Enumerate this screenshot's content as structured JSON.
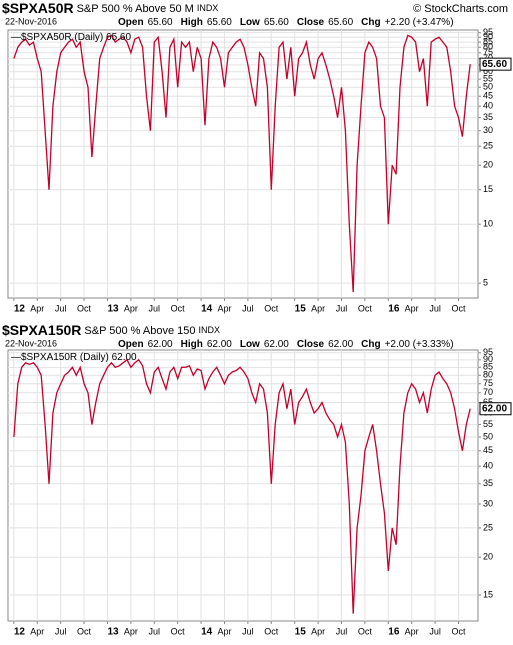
{
  "chart_data": [
    {
      "type": "line",
      "title": "$SPXA50R",
      "subtitle": "S&P 500 % Above 50 M",
      "exchange": "INDX",
      "date": "22-Nov-2016",
      "ohlc": [
        {
          "label": "Open",
          "value": "65.60"
        },
        {
          "label": "High",
          "value": "65.60"
        },
        {
          "label": "Low",
          "value": "65.60"
        },
        {
          "label": "Close",
          "value": "65.60"
        },
        {
          "label": "Chg",
          "value": "+2.20 (+3.47%)"
        }
      ],
      "watermark": "© StockCharts.com",
      "legend": "$SPXA50R (Daily) 65.60",
      "last_label": "65.60",
      "color": "#c4002b",
      "log_scale": true,
      "grid": true,
      "xlim": [
        -1.5,
        119
      ],
      "ylim": [
        4.2,
        98
      ],
      "xticks": [
        {
          "value": 0,
          "label": "12"
        },
        {
          "value": 6,
          "label": "Apr"
        },
        {
          "value": 12,
          "label": "Jul"
        },
        {
          "value": 18,
          "label": "Oct"
        },
        {
          "value": 24,
          "label": "13"
        },
        {
          "value": 30,
          "label": "Apr"
        },
        {
          "value": 36,
          "label": "Jul"
        },
        {
          "value": 42,
          "label": "Oct"
        },
        {
          "value": 48,
          "label": "14"
        },
        {
          "value": 54,
          "label": "Apr"
        },
        {
          "value": 60,
          "label": "Jul"
        },
        {
          "value": 66,
          "label": "Oct"
        },
        {
          "value": 72,
          "label": "15"
        },
        {
          "value": 78,
          "label": "Apr"
        },
        {
          "value": 84,
          "label": "Jul"
        },
        {
          "value": 90,
          "label": "Oct"
        },
        {
          "value": 96,
          "label": "16"
        },
        {
          "value": 102,
          "label": "Apr"
        },
        {
          "value": 108,
          "label": "Jul"
        },
        {
          "value": 114,
          "label": "Oct"
        }
      ],
      "yticks": [
        5,
        10,
        15,
        20,
        25,
        30,
        35,
        40,
        45,
        50,
        55,
        60,
        65,
        70,
        75,
        80,
        85,
        90,
        95
      ],
      "values": [
        70,
        80,
        85,
        88,
        82,
        85,
        70,
        60,
        30,
        15,
        40,
        60,
        75,
        80,
        85,
        88,
        80,
        85,
        60,
        50,
        22,
        40,
        70,
        80,
        90,
        92,
        85,
        88,
        90,
        85,
        75,
        88,
        90,
        80,
        45,
        30,
        85,
        90,
        60,
        35,
        80,
        88,
        50,
        85,
        80,
        85,
        60,
        80,
        70,
        32,
        70,
        85,
        80,
        70,
        50,
        75,
        80,
        85,
        88,
        80,
        65,
        50,
        40,
        75,
        70,
        50,
        15,
        40,
        80,
        85,
        55,
        80,
        45,
        70,
        75,
        85,
        65,
        55,
        70,
        75,
        65,
        55,
        45,
        35,
        50,
        30,
        10,
        4.5,
        20,
        40,
        75,
        85,
        80,
        70,
        40,
        35,
        10,
        20,
        18,
        50,
        80,
        92,
        90,
        85,
        60,
        70,
        40,
        85,
        88,
        90,
        85,
        80,
        60,
        40,
        35,
        28,
        45,
        65.6
      ]
    },
    {
      "type": "line",
      "title": "$SPXA150R",
      "subtitle": "S&P 500 % Above 150",
      "exchange": "INDX",
      "date": "22-Nov-2016",
      "ohlc": [
        {
          "label": "Open",
          "value": "62.00"
        },
        {
          "label": "High",
          "value": "62.00"
        },
        {
          "label": "Low",
          "value": "62.00"
        },
        {
          "label": "Close",
          "value": "62.00"
        },
        {
          "label": "Chg",
          "value": "+2.00 (+3.33%)"
        }
      ],
      "legend": "$SPXA150R (Daily) 62.00",
      "last_label": "62.00",
      "color": "#c4002b",
      "log_scale": true,
      "grid": true,
      "xlim": [
        -1.5,
        119
      ],
      "ylim": [
        12.3,
        97
      ],
      "xticks": [
        {
          "value": 0,
          "label": "12"
        },
        {
          "value": 6,
          "label": "Apr"
        },
        {
          "value": 12,
          "label": "Jul"
        },
        {
          "value": 18,
          "label": "Oct"
        },
        {
          "value": 24,
          "label": "13"
        },
        {
          "value": 30,
          "label": "Apr"
        },
        {
          "value": 36,
          "label": "Jul"
        },
        {
          "value": 42,
          "label": "Oct"
        },
        {
          "value": 48,
          "label": "14"
        },
        {
          "value": 54,
          "label": "Apr"
        },
        {
          "value": 60,
          "label": "Jul"
        },
        {
          "value": 66,
          "label": "Oct"
        },
        {
          "value": 72,
          "label": "15"
        },
        {
          "value": 78,
          "label": "Apr"
        },
        {
          "value": 84,
          "label": "Jul"
        },
        {
          "value": 90,
          "label": "Oct"
        },
        {
          "value": 96,
          "label": "16"
        },
        {
          "value": 102,
          "label": "Apr"
        },
        {
          "value": 108,
          "label": "Jul"
        },
        {
          "value": 114,
          "label": "Oct"
        }
      ],
      "yticks": [
        15,
        20,
        25,
        30,
        35,
        40,
        45,
        50,
        55,
        60,
        65,
        70,
        75,
        80,
        85,
        90,
        95
      ],
      "values": [
        50,
        75,
        85,
        88,
        87,
        88,
        85,
        80,
        55,
        35,
        60,
        70,
        75,
        80,
        82,
        85,
        80,
        85,
        75,
        70,
        55,
        65,
        75,
        80,
        85,
        88,
        85,
        86,
        88,
        90,
        85,
        88,
        90,
        86,
        75,
        70,
        82,
        85,
        78,
        72,
        82,
        85,
        78,
        85,
        85,
        86,
        80,
        84,
        83,
        72,
        78,
        82,
        85,
        80,
        75,
        80,
        82,
        83,
        85,
        82,
        78,
        70,
        65,
        75,
        72,
        60,
        35,
        55,
        70,
        75,
        62,
        72,
        55,
        65,
        68,
        72,
        65,
        60,
        62,
        65,
        60,
        57,
        55,
        50,
        55,
        48,
        30,
        13,
        25,
        32,
        45,
        50,
        55,
        45,
        35,
        28,
        18,
        25,
        22,
        40,
        60,
        70,
        75,
        72,
        65,
        70,
        60,
        72,
        80,
        82,
        78,
        75,
        70,
        62,
        52,
        45,
        55,
        62
      ]
    }
  ]
}
